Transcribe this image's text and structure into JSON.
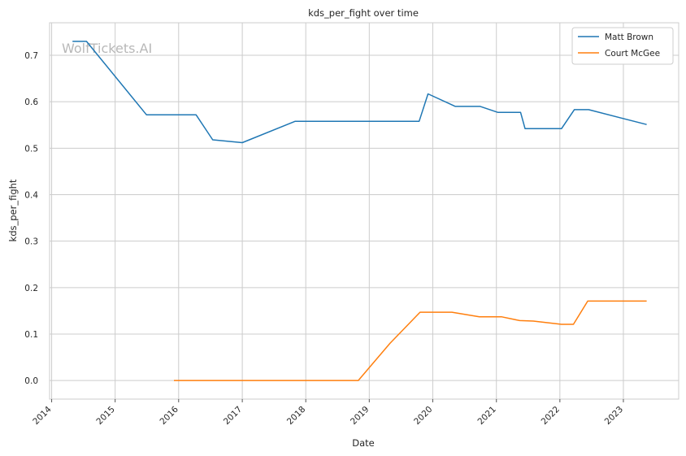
{
  "chart_data": {
    "type": "line",
    "title": "kds_per_fight over time",
    "xlabel": "Date",
    "ylabel": "kds_per_fight",
    "watermark": "WolfTickets.AI",
    "x_ticks": [
      "2014",
      "2015",
      "2016",
      "2017",
      "2018",
      "2019",
      "2020",
      "2021",
      "2022",
      "2023"
    ],
    "y_ticks": [
      "0.0",
      "0.1",
      "0.2",
      "0.3",
      "0.4",
      "0.5",
      "0.6",
      "0.7"
    ],
    "xlim": [
      "2013-12-20",
      "2023-11-15"
    ],
    "ylim": [
      -0.04,
      0.77
    ],
    "grid": true,
    "legend_position": "top-right",
    "series": [
      {
        "name": "Matt Brown",
        "color": "#1f77b4",
        "points": [
          [
            "2014-05-01",
            0.73
          ],
          [
            "2014-07-20",
            0.73
          ],
          [
            "2015-06-30",
            0.572
          ],
          [
            "2016-04-10",
            0.572
          ],
          [
            "2016-07-15",
            0.518
          ],
          [
            "2017-01-01",
            0.512
          ],
          [
            "2017-11-01",
            0.558
          ],
          [
            "2019-10-15",
            0.558
          ],
          [
            "2019-12-05",
            0.617
          ],
          [
            "2020-05-10",
            0.59
          ],
          [
            "2020-09-30",
            0.59
          ],
          [
            "2021-01-10",
            0.577
          ],
          [
            "2021-05-20",
            0.577
          ],
          [
            "2021-06-15",
            0.542
          ],
          [
            "2022-01-10",
            0.542
          ],
          [
            "2022-03-25",
            0.583
          ],
          [
            "2022-06-15",
            0.583
          ],
          [
            "2023-05-15",
            0.551
          ]
        ]
      },
      {
        "name": "Court McGee",
        "color": "#ff7f0e",
        "points": [
          [
            "2015-12-05",
            0.0
          ],
          [
            "2018-10-30",
            0.0
          ],
          [
            "2019-04-30",
            0.08
          ],
          [
            "2019-10-20",
            0.147
          ],
          [
            "2020-04-20",
            0.147
          ],
          [
            "2020-09-25",
            0.137
          ],
          [
            "2021-02-01",
            0.137
          ],
          [
            "2021-05-15",
            0.129
          ],
          [
            "2021-08-01",
            0.128
          ],
          [
            "2022-01-10",
            0.121
          ],
          [
            "2022-03-20",
            0.121
          ],
          [
            "2022-06-10",
            0.171
          ],
          [
            "2023-05-15",
            0.171
          ]
        ]
      }
    ]
  }
}
